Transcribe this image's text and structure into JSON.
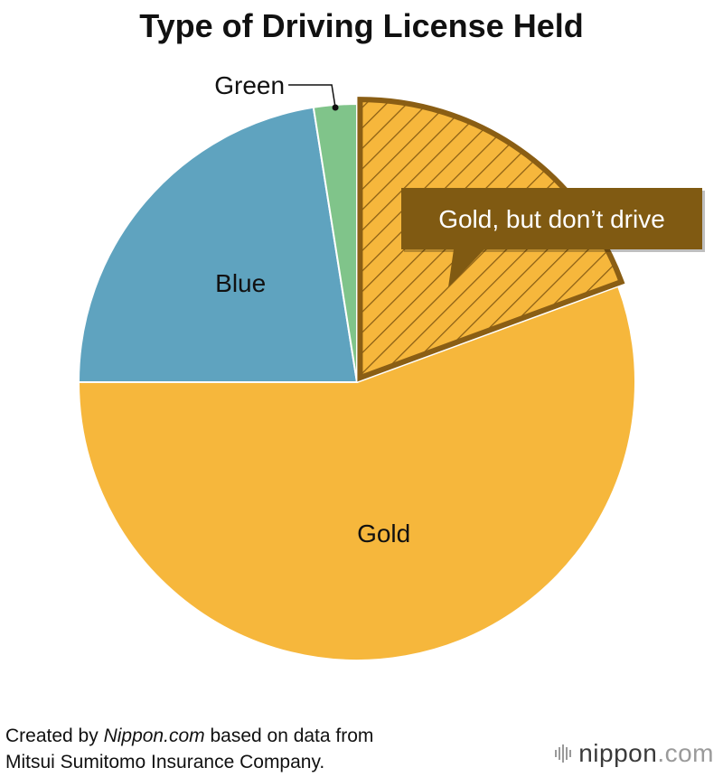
{
  "chart_data": {
    "type": "pie",
    "title": "Type of Driving License Held",
    "slices": [
      {
        "label": "Gold, but don’t drive",
        "value": 19.4,
        "color": "#F6B73C",
        "hatched": true,
        "label_style": "callout"
      },
      {
        "label": "Gold",
        "value": 55.6,
        "color": "#F6B73C",
        "hatched": false,
        "label_style": "inside"
      },
      {
        "label": "Blue",
        "value": 22.5,
        "color": "#5FA3BF",
        "hatched": false,
        "label_style": "inside"
      },
      {
        "label": "Green",
        "value": 2.5,
        "color": "#80C48A",
        "hatched": false,
        "label_style": "leader"
      }
    ],
    "start_angle": "12 o'clock",
    "direction": "clockwise",
    "highlight_color": "#8A5E14",
    "callout_color": "#805A12"
  },
  "footer": {
    "credit_prefix": "Created by ",
    "credit_source": "Nippon.com",
    "credit_suffix": " based on data from",
    "credit_line2": "Mitsui Sumitomo Insurance Company."
  },
  "brand": {
    "name": "nippon",
    "tld": ".com",
    "color": "#3A3A3A"
  }
}
